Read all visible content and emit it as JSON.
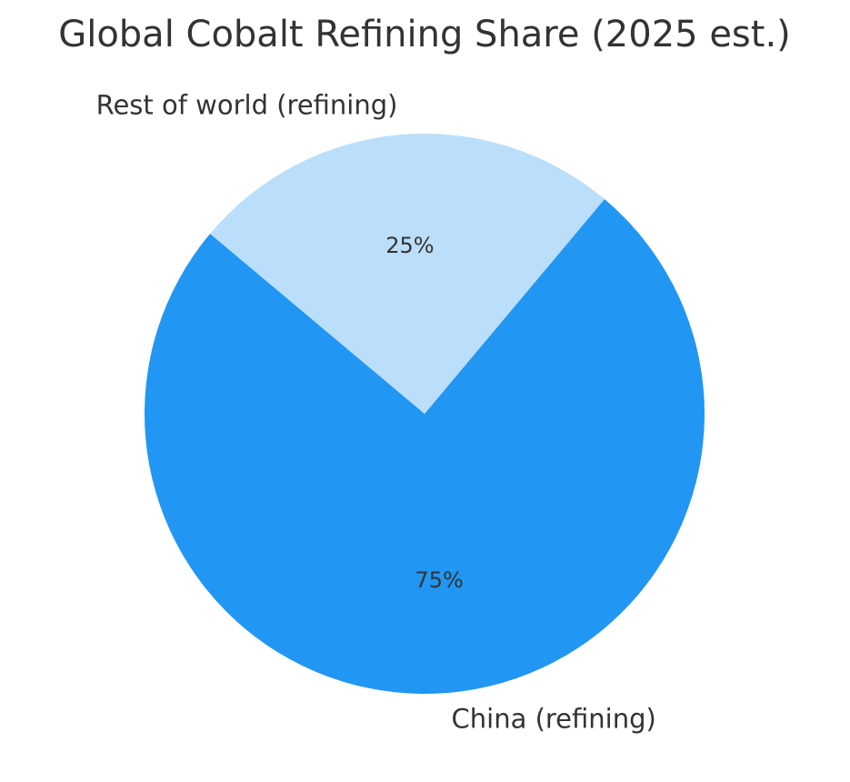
{
  "chart_data": {
    "type": "pie",
    "title": "Global Cobalt Refining Share (2025 est.)",
    "categories": [
      "China (refining)",
      "Rest of world (refining)"
    ],
    "values": [
      75,
      25
    ],
    "value_labels": [
      "75%",
      "25%"
    ],
    "colors": [
      "#2196f3",
      "#bbdefb"
    ],
    "start_angle": 140
  }
}
